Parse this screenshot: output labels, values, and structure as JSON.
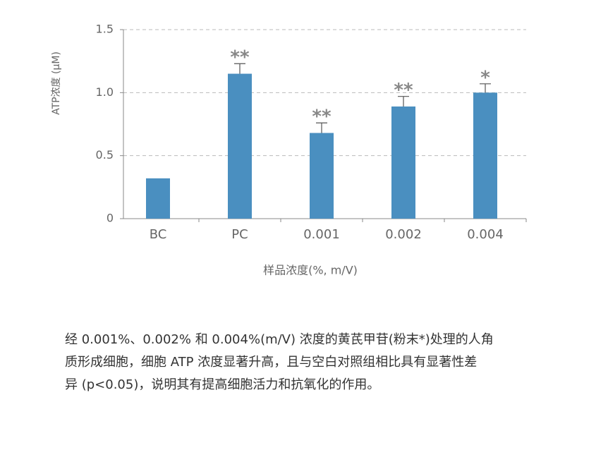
{
  "chart_data": {
    "type": "bar",
    "y_label": "ATP浓度 (μM)",
    "x_label": "样品浓度(%, m/V)",
    "categories": [
      "BC",
      "PC",
      "0.001",
      "0.002",
      "0.004"
    ],
    "values": [
      0.32,
      1.15,
      0.68,
      0.89,
      1.0
    ],
    "errors": [
      null,
      0.08,
      0.08,
      0.08,
      0.07
    ],
    "significance": [
      null,
      "**",
      "**",
      "**",
      "*"
    ],
    "color": "#4a8fc0",
    "ylim": [
      0,
      1.5
    ],
    "yticks": [
      0,
      0.5,
      {
        "value": 1,
        "label": "1.0"
      },
      1.5
    ],
    "grid": true
  },
  "caption": {
    "lines": [
      "经 0.001%、0.002% 和 0.004%(m/V) 浓度的黄芪甲苷(粉末*)处理的人角",
      "质形成细胞，细胞 ATP 浓度显著升高，且与空白对照组相比具有显著性差",
      "异 (p<0.05)，说明其有提高细胞活力和抗氧化的作用。"
    ]
  }
}
